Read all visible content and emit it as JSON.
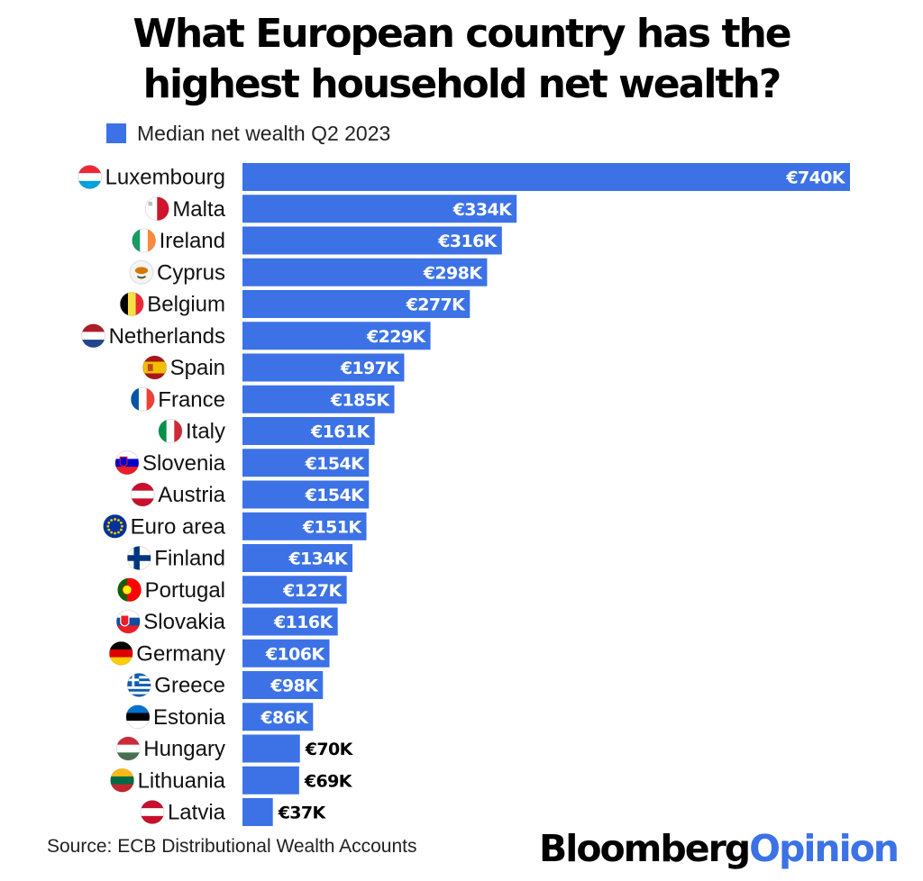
{
  "title_lines": [
    "What European country has the",
    "highest household net wealth?"
  ],
  "source": "Source: ECB Distributional Wealth Accounts",
  "brand": {
    "part1": "Bloomberg",
    "part2": "Opinion"
  },
  "colors": {
    "bar": "#3c72e6",
    "bar_label": "#ffffff",
    "bar_label_outside": "#000000",
    "brand_accent": "#3c72e6"
  },
  "chart_data": {
    "type": "bar",
    "orientation": "horizontal",
    "categories": [
      "Luxembourg",
      "Malta",
      "Ireland",
      "Cyprus",
      "Belgium",
      "Netherlands",
      "Spain",
      "France",
      "Italy",
      "Slovenia",
      "Austria",
      "Euro area",
      "Finland",
      "Portugal",
      "Slovakia",
      "Germany",
      "Greece",
      "Estonia",
      "Hungary",
      "Lithuania",
      "Latvia"
    ],
    "series": [
      {
        "name": "Median net wealth Q2 2023",
        "values": [
          740,
          334,
          316,
          298,
          277,
          229,
          197,
          185,
          161,
          154,
          154,
          151,
          134,
          127,
          116,
          106,
          98,
          86,
          70,
          69,
          37
        ],
        "labels": [
          "€740K",
          "€334K",
          "€316K",
          "€298K",
          "€277K",
          "€229K",
          "€197K",
          "€185K",
          "€161K",
          "€154K",
          "€154K",
          "€151K",
          "€134K",
          "€127K",
          "€116K",
          "€106K",
          "€98K",
          "€86K",
          "€70K",
          "€69K",
          "€37K"
        ]
      }
    ],
    "value_unit": "€K",
    "xlim": [
      0,
      740
    ],
    "flag_icons": [
      "flag-luxembourg-icon",
      "flag-malta-icon",
      "flag-ireland-icon",
      "flag-cyprus-icon",
      "flag-belgium-icon",
      "flag-netherlands-icon",
      "flag-spain-icon",
      "flag-france-icon",
      "flag-italy-icon",
      "flag-slovenia-icon",
      "flag-austria-icon",
      "flag-eu-icon",
      "flag-finland-icon",
      "flag-portugal-icon",
      "flag-slovakia-icon",
      "flag-germany-icon",
      "flag-greece-icon",
      "flag-estonia-icon",
      "flag-hungary-icon",
      "flag-lithuania-icon",
      "flag-latvia-icon"
    ],
    "grid": false,
    "legend": "top-left"
  }
}
